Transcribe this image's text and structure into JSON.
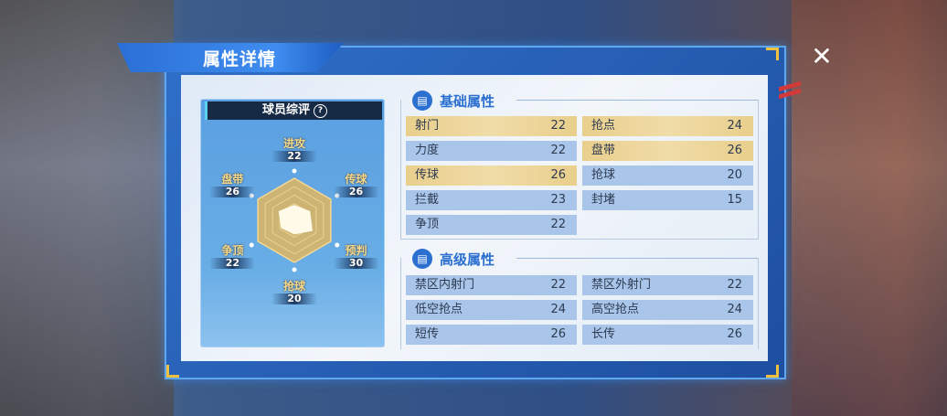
{
  "title": "属性详情",
  "close_icon": "close-x-icon",
  "rating_card": {
    "title": "球员综评",
    "help": "?",
    "radar": [
      {
        "label": "进攻",
        "value": 22
      },
      {
        "label": "传球",
        "value": 26
      },
      {
        "label": "预判",
        "value": 30
      },
      {
        "label": "抢球",
        "value": 20
      },
      {
        "label": "争顶",
        "value": 22
      },
      {
        "label": "盘带",
        "value": 26
      }
    ]
  },
  "basic": {
    "title": "基础属性",
    "icon": "clipboard-icon",
    "left": [
      {
        "label": "射门",
        "value": "22",
        "highlight": true
      },
      {
        "label": "力度",
        "value": "22",
        "highlight": false
      },
      {
        "label": "传球",
        "value": "26",
        "highlight": true
      },
      {
        "label": "拦截",
        "value": "23",
        "highlight": false
      },
      {
        "label": "争顶",
        "value": "22",
        "highlight": false
      }
    ],
    "right": [
      {
        "label": "抢点",
        "value": "24",
        "highlight": true
      },
      {
        "label": "盘带",
        "value": "26",
        "highlight": true
      },
      {
        "label": "抢球",
        "value": "20",
        "highlight": false
      },
      {
        "label": "封堵",
        "value": "15",
        "highlight": false
      }
    ]
  },
  "advanced": {
    "title": "高级属性",
    "icon": "clipboard-icon",
    "left": [
      {
        "label": "禁区内射门",
        "value": "22"
      },
      {
        "label": "低空抢点",
        "value": "24"
      },
      {
        "label": "短传",
        "value": "26"
      }
    ],
    "right": [
      {
        "label": "禁区外射门",
        "value": "22"
      },
      {
        "label": "高空抢点",
        "value": "24"
      },
      {
        "label": "长传",
        "value": "26"
      }
    ]
  },
  "colors": {
    "accent": "#2b6fd0",
    "highlight": "#e9cf8c",
    "row": "#a9c6ea",
    "radar": "#f0b850"
  }
}
